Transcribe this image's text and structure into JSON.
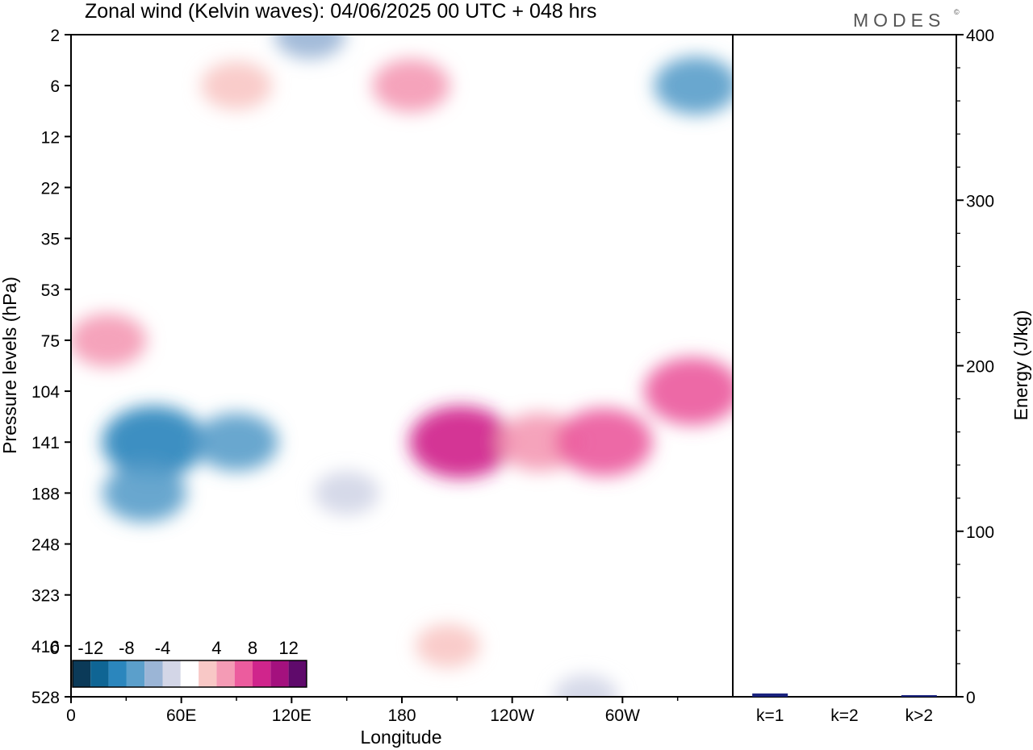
{
  "brand": "MODES",
  "brand_mark": "©",
  "chart_data": [
    {
      "type": "heatmap",
      "title": "Zonal wind (Kelvin waves):  04/06/2025  00 UTC  + 048 hrs",
      "xlabel": "Longitude",
      "ylabel": "Pressure levels (hPa)",
      "x_ticks": [
        "0",
        "60E",
        "120E",
        "180",
        "120W",
        "60W"
      ],
      "y_ticks": [
        "2",
        "6",
        "12",
        "22",
        "35",
        "53",
        "75",
        "104",
        "141",
        "188",
        "248",
        "323",
        "416",
        "528"
      ],
      "colorbar": {
        "labels": [
          "-12",
          "-8",
          "-4",
          "0",
          "4",
          "8",
          "12"
        ],
        "levels": [
          -14,
          -12,
          -10,
          -8,
          -6,
          -4,
          -2,
          2,
          4,
          6,
          8,
          10,
          12,
          14
        ],
        "colors": [
          "#0b3a58",
          "#0f6594",
          "#2b86bd",
          "#5b9fcb",
          "#9bb5d6",
          "#d3d6e7",
          "#ffffff",
          "#f8c8c6",
          "#f49bb5",
          "#ec5c9e",
          "#d0258c",
          "#a4117e",
          "#5f0a6b"
        ]
      },
      "regions": [
        {
          "lon": 45,
          "p": 141,
          "v": -9
        },
        {
          "lon": 40,
          "p": 188,
          "v": -6
        },
        {
          "lon": 90,
          "p": 141,
          "v": -6
        },
        {
          "lon": 150,
          "p": 188,
          "v": -3
        },
        {
          "lon": 20,
          "p": 75,
          "v": 5
        },
        {
          "lon": 212,
          "p": 141,
          "v": 9
        },
        {
          "lon": 255,
          "p": 141,
          "v": 6
        },
        {
          "lon": 290,
          "p": 141,
          "v": 8
        },
        {
          "lon": 338,
          "p": 104,
          "v": 8
        },
        {
          "lon": 185,
          "p": 6,
          "v": 5
        },
        {
          "lon": 90,
          "p": 6,
          "v": 4
        },
        {
          "lon": 340,
          "p": 6,
          "v": -6
        },
        {
          "lon": 130,
          "p": 2,
          "v": -4
        },
        {
          "lon": 205,
          "p": 416,
          "v": 3
        },
        {
          "lon": 280,
          "p": 528,
          "v": -3
        }
      ]
    },
    {
      "type": "bar",
      "categories": [
        "k=1",
        "k=2",
        "k>2"
      ],
      "values": [
        2,
        0,
        0.5
      ],
      "ylabel": "Energy (J/kg)",
      "ylim": [
        0,
        400
      ],
      "y_ticks": [
        "0",
        "100",
        "200",
        "300",
        "400"
      ],
      "bar_color": "#1a237e"
    }
  ]
}
